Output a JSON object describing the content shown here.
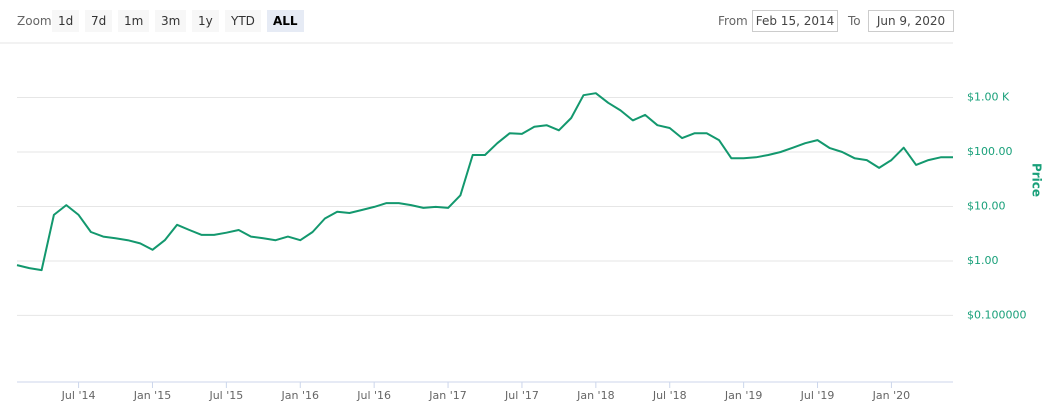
{
  "zoom_label": "Zoom",
  "zoom_buttons": [
    {
      "label": "1d"
    },
    {
      "label": "7d"
    },
    {
      "label": "1m"
    },
    {
      "label": "3m"
    },
    {
      "label": "1y"
    },
    {
      "label": "YTD"
    },
    {
      "label": "ALL",
      "selected": true
    }
  ],
  "range": {
    "from_label": "From",
    "from": "Feb 15, 2014",
    "to_label": "To",
    "to": "Jun 9, 2020"
  },
  "chart_data": {
    "type": "line",
    "y_axis_label": "Price",
    "log_scale": true,
    "grid": true,
    "color": "#13986e",
    "axis_color": "#19a07a",
    "x": [
      "2014-02",
      "2014-03",
      "2014-04",
      "2014-05",
      "2014-06",
      "2014-07",
      "2014-08",
      "2014-09",
      "2014-10",
      "2014-11",
      "2014-12",
      "2015-01",
      "2015-02",
      "2015-03",
      "2015-04",
      "2015-05",
      "2015-06",
      "2015-07",
      "2015-08",
      "2015-09",
      "2015-10",
      "2015-11",
      "2015-12",
      "2016-01",
      "2016-02",
      "2016-03",
      "2016-04",
      "2016-05",
      "2016-06",
      "2016-07",
      "2016-08",
      "2016-09",
      "2016-10",
      "2016-11",
      "2016-12",
      "2017-01",
      "2017-02",
      "2017-03",
      "2017-04",
      "2017-05",
      "2017-06",
      "2017-07",
      "2017-08",
      "2017-09",
      "2017-10",
      "2017-11",
      "2017-12",
      "2018-01",
      "2018-02",
      "2018-03",
      "2018-04",
      "2018-05",
      "2018-06",
      "2018-07",
      "2018-08",
      "2018-09",
      "2018-10",
      "2018-11",
      "2018-12",
      "2019-01",
      "2019-02",
      "2019-03",
      "2019-04",
      "2019-05",
      "2019-06",
      "2019-07",
      "2019-08",
      "2019-09",
      "2019-10",
      "2019-11",
      "2019-12",
      "2020-01",
      "2020-02",
      "2020-03",
      "2020-04",
      "2020-05",
      "2020-06"
    ],
    "series": [
      {
        "name": "Price",
        "color": "#13986e",
        "values": [
          0.84,
          0.74,
          0.68,
          7,
          10.6,
          7,
          3.4,
          2.8,
          2.6,
          2.4,
          2.1,
          1.6,
          2.4,
          4.6,
          3.7,
          3.0,
          3.0,
          3.3,
          3.7,
          2.8,
          2.6,
          2.4,
          2.8,
          2.4,
          3.4,
          6,
          8,
          7.6,
          8.6,
          9.8,
          11.5,
          11.5,
          10.6,
          9.4,
          9.8,
          9.4,
          16,
          88,
          88,
          145,
          220,
          215,
          290,
          310,
          250,
          420,
          1100,
          1200,
          800,
          580,
          380,
          480,
          310,
          275,
          180,
          220,
          220,
          165,
          77,
          77,
          80,
          88,
          100,
          120,
          145,
          165,
          118,
          100,
          77,
          71,
          51,
          71,
          120,
          58,
          71,
          80,
          80
        ]
      }
    ],
    "xlim": [
      "2014-02",
      "2020-06"
    ],
    "xticks": [
      {
        "value": "2014-07",
        "label": "Jul '14"
      },
      {
        "value": "2015-01",
        "label": "Jan '15"
      },
      {
        "value": "2015-07",
        "label": "Jul '15"
      },
      {
        "value": "2016-01",
        "label": "Jan '16"
      },
      {
        "value": "2016-07",
        "label": "Jul '16"
      },
      {
        "value": "2017-01",
        "label": "Jan '17"
      },
      {
        "value": "2017-07",
        "label": "Jul '17"
      },
      {
        "value": "2018-01",
        "label": "Jan '18"
      },
      {
        "value": "2018-07",
        "label": "Jul '18"
      },
      {
        "value": "2019-01",
        "label": "Jan '19"
      },
      {
        "value": "2019-07",
        "label": "Jul '19"
      },
      {
        "value": "2020-01",
        "label": "Jan '20"
      }
    ],
    "ylim": [
      0.006,
      10000
    ],
    "yticks": [
      {
        "value": 0.1,
        "label": "$0.100000"
      },
      {
        "value": 1,
        "label": "$1.00"
      },
      {
        "value": 10,
        "label": "$10.00"
      },
      {
        "value": 100,
        "label": "$100.00"
      },
      {
        "value": 1000,
        "label": "$1.00 K"
      }
    ]
  }
}
